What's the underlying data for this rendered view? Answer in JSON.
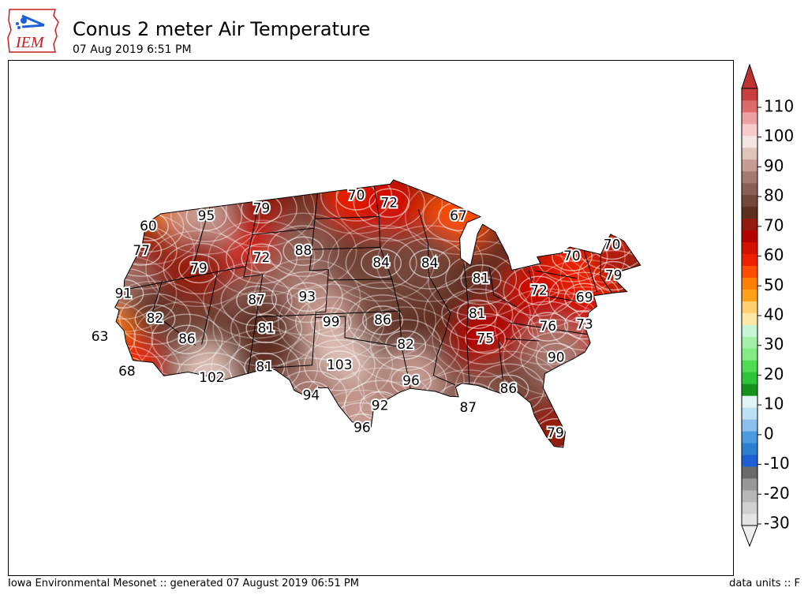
{
  "header": {
    "title": "Conus 2 meter Air Temperature",
    "subtitle": "07 Aug 2019 6:51 PM",
    "logo_text": "IEM"
  },
  "footer": {
    "source": "Iowa Environmental Mesonet :: generated 07 August 2019 06:51 PM",
    "units": "data units :: F"
  },
  "colorbar": {
    "tick_labels": [
      "110",
      "100",
      "90",
      "80",
      "70",
      "60",
      "50",
      "40",
      "30",
      "20",
      "10",
      "0",
      "-10",
      "-20",
      "-30"
    ],
    "colors": [
      "#e4e4e4",
      "#d0d0d0",
      "#b8b8b8",
      "#989898",
      "#6a6a6a",
      "#1f5fd6",
      "#2a7fd0",
      "#4a9be0",
      "#8cc0ec",
      "#bde0f2",
      "#e2f3f6",
      "#16921c",
      "#2ec43a",
      "#4fdc52",
      "#84ea82",
      "#a3f0a8",
      "#c6f6d6",
      "#ffe8a6",
      "#ffd070",
      "#ffa019",
      "#ff7e05",
      "#ff4d00",
      "#ef2000",
      "#d41100",
      "#b40000",
      "#951a0e",
      "#5e2e21",
      "#74463a",
      "#8b5f54",
      "#a87970",
      "#c79c93",
      "#e0c3b9",
      "#f5e5e1",
      "#f9cccc",
      "#eda1a1",
      "#de6b6b",
      "#c93e3e"
    ],
    "top_color": "#c03232",
    "bottom_color": "#eeeeee"
  },
  "contour_labels": [
    {
      "text": "60",
      "lon": -124.2,
      "lat": 48.0
    },
    {
      "text": "95",
      "lon": -117.1,
      "lat": 47.6
    },
    {
      "text": "77",
      "lon": -123.8,
      "lat": 45.6
    },
    {
      "text": "79",
      "lon": -110.5,
      "lat": 47.4
    },
    {
      "text": "70",
      "lon": -99.3,
      "lat": 47.9
    },
    {
      "text": "72",
      "lon": -95.4,
      "lat": 47.2
    },
    {
      "text": "67",
      "lon": -87.4,
      "lat": 46.3
    },
    {
      "text": "70",
      "lon": -69.6,
      "lat": 46.3
    },
    {
      "text": "91",
      "lon": -124.0,
      "lat": 41.6
    },
    {
      "text": "79",
      "lon": -116.2,
      "lat": 42.5
    },
    {
      "text": "72",
      "lon": -109.4,
      "lat": 42.6
    },
    {
      "text": "88",
      "lon": -104.9,
      "lat": 42.9
    },
    {
      "text": "70",
      "lon": -75.1,
      "lat": 44.1
    },
    {
      "text": "79",
      "lon": -70.9,
      "lat": 43.1
    },
    {
      "text": "84",
      "lon": -96.4,
      "lat": 41.5
    },
    {
      "text": "84",
      "lon": -91.2,
      "lat": 41.6
    },
    {
      "text": "81",
      "lon": -85.9,
      "lat": 40.5
    },
    {
      "text": "72",
      "lon": -79.9,
      "lat": 40.1
    },
    {
      "text": "69",
      "lon": -75.1,
      "lat": 40.2
    },
    {
      "text": "82",
      "lon": -119.5,
      "lat": 38.3
    },
    {
      "text": "63",
      "lon": -124.9,
      "lat": 37.7
    },
    {
      "text": "87",
      "lon": -109.2,
      "lat": 38.6
    },
    {
      "text": "93",
      "lon": -104.0,
      "lat": 38.5
    },
    {
      "text": "81",
      "lon": -86.8,
      "lat": 37.1
    },
    {
      "text": "73",
      "lon": -75.9,
      "lat": 37.5
    },
    {
      "text": "76",
      "lon": -79.8,
      "lat": 36.7
    },
    {
      "text": "86",
      "lon": -115.6,
      "lat": 35.7
    },
    {
      "text": "81",
      "lon": -107.8,
      "lat": 35.8
    },
    {
      "text": "99",
      "lon": -101.4,
      "lat": 36.0
    },
    {
      "text": "86",
      "lon": -96.3,
      "lat": 36.1
    },
    {
      "text": "68",
      "lon": -120.9,
      "lat": 33.6
    },
    {
      "text": "75",
      "lon": -86.3,
      "lat": 34.8
    },
    {
      "text": "90",
      "lon": -79.6,
      "lat": 33.8
    },
    {
      "text": "82",
      "lon": -94.1,
      "lat": 33.8
    },
    {
      "text": "102",
      "lon": -112.4,
      "lat": 31.6
    },
    {
      "text": "81",
      "lon": -107.5,
      "lat": 32.1
    },
    {
      "text": "103",
      "lon": -100.4,
      "lat": 31.9
    },
    {
      "text": "96",
      "lon": -93.7,
      "lat": 30.4
    },
    {
      "text": "86",
      "lon": -84.7,
      "lat": 30.2
    },
    {
      "text": "94",
      "lon": -102.9,
      "lat": 29.1
    },
    {
      "text": "87",
      "lon": -88.6,
      "lat": 28.1
    },
    {
      "text": "92",
      "lon": -96.6,
      "lat": 28.0
    },
    {
      "text": "79",
      "lon": -80.9,
      "lat": 26.5
    },
    {
      "text": "96",
      "lon": -98.2,
      "lat": 25.9
    }
  ]
}
